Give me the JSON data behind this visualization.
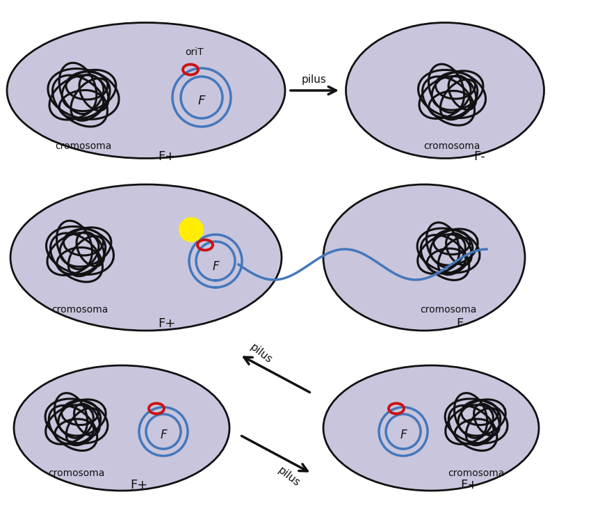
{
  "bg_color": "#ffffff",
  "cell_color": "#c8c5dd",
  "cell_edge_color": "#111111",
  "chromosome_color": "#111111",
  "plasmid_color": "#4477bb",
  "oriT_color": "#cc1111",
  "yellow_dot_color": "#ffee00",
  "arrow_color": "#111111",
  "text_color": "#111111",
  "label_F": "F",
  "label_oriT": "oriT",
  "label_pilus": "pilus",
  "label_cromosoma": "cromosoma",
  "label_Fplus": "F+",
  "label_Fminus": "F-"
}
